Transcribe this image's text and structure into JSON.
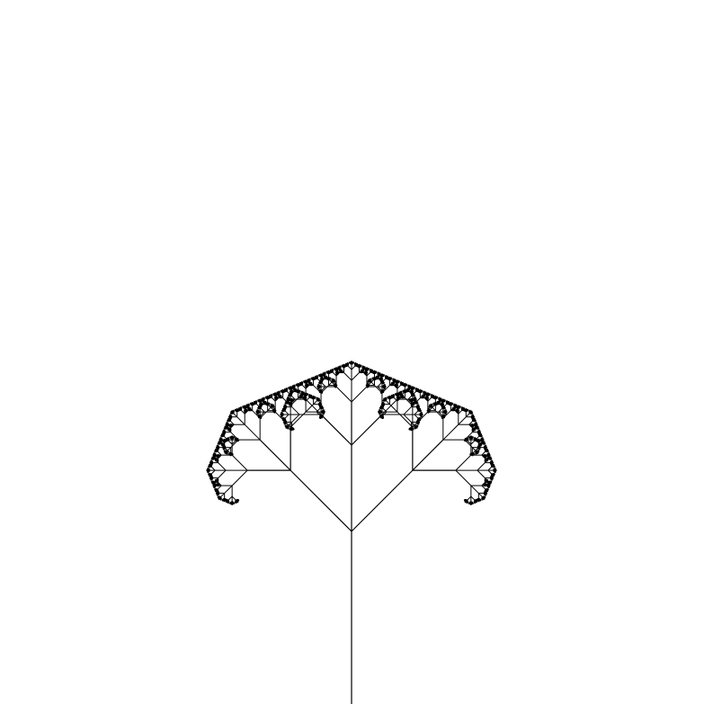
{
  "figure": {
    "subject": "l-system-fractal-plant",
    "background_color": "#ffffff",
    "ink_color": "#000000",
    "recursion_depth": 6,
    "branch_angle_degrees": 45,
    "has_text": false
  }
}
